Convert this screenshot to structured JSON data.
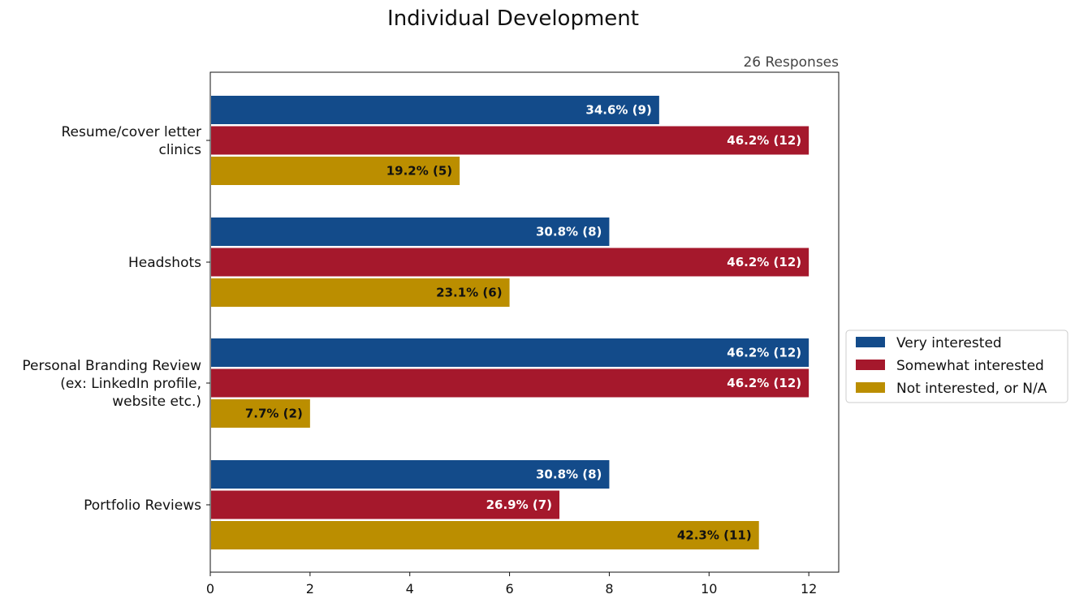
{
  "colors": {
    "very": "#134b8a",
    "somewhat": "#a5182c",
    "not": "#bb8e00"
  },
  "chart_data": {
    "type": "bar",
    "orientation": "horizontal",
    "title": "Individual Development",
    "subtitle": "26 Responses",
    "categories": [
      [
        "Resume/cover letter",
        "clinics"
      ],
      [
        "Headshots"
      ],
      [
        "Personal Branding Review",
        "(ex: LinkedIn profile,",
        "website etc.)"
      ],
      [
        "Portfolio Reviews"
      ]
    ],
    "series": [
      {
        "name": "Very interested",
        "values": [
          9,
          8,
          12,
          8
        ],
        "labels": [
          "34.6% (9)",
          "30.8% (8)",
          "46.2% (12)",
          "30.8% (8)"
        ]
      },
      {
        "name": "Somewhat interested",
        "values": [
          12,
          12,
          12,
          7
        ],
        "labels": [
          "46.2% (12)",
          "46.2% (12)",
          "46.2% (12)",
          "26.9% (7)"
        ]
      },
      {
        "name": "Not interested, or N/A",
        "values": [
          5,
          6,
          2,
          11
        ],
        "labels": [
          "19.2% (5)",
          "23.1% (6)",
          "7.7% (2)",
          "42.3% (11)"
        ]
      }
    ],
    "xlim": [
      0,
      12.6
    ],
    "xticks": [
      "0",
      "2",
      "4",
      "6",
      "8",
      "10",
      "12"
    ],
    "grid": false,
    "legend": "right"
  }
}
